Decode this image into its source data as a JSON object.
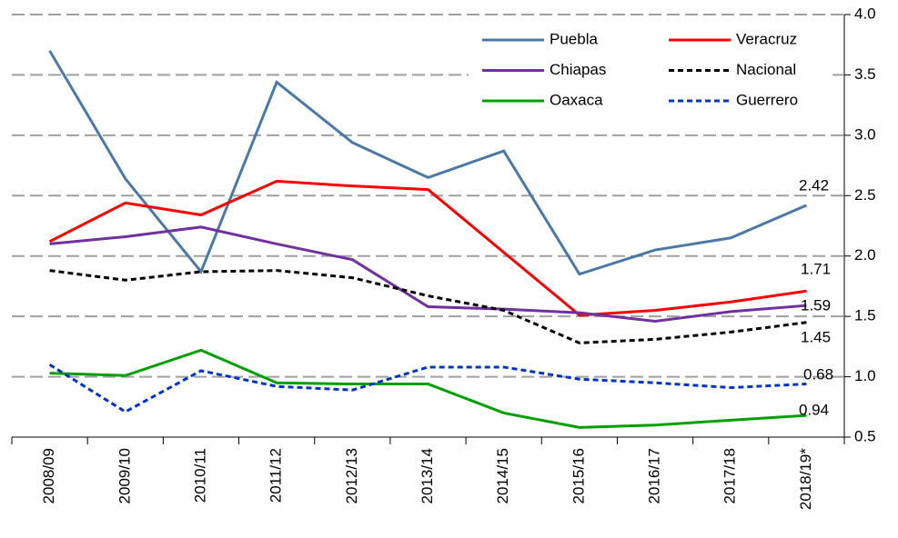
{
  "chart_data": {
    "type": "line",
    "categories": [
      "2008/09",
      "2009/10",
      "2010/11",
      "2011/12",
      "2012/13",
      "2013/14",
      "2014/15",
      "2015/16",
      "2016/17",
      "2017/18",
      "2018/19*"
    ],
    "series": [
      {
        "name": "Puebla",
        "color": "#4a78a8",
        "dashed": false,
        "values": [
          3.7,
          2.64,
          1.87,
          3.44,
          2.94,
          2.65,
          2.87,
          1.85,
          2.05,
          2.15,
          2.42
        ]
      },
      {
        "name": "Veracruz",
        "color": "#ff0000",
        "dashed": false,
        "values": [
          2.12,
          2.44,
          2.34,
          2.62,
          2.58,
          2.55,
          2.03,
          1.51,
          1.55,
          1.62,
          1.71
        ]
      },
      {
        "name": "Chiapas",
        "color": "#7030a0",
        "dashed": false,
        "values": [
          2.1,
          2.16,
          2.24,
          2.1,
          1.97,
          1.58,
          1.56,
          1.53,
          1.46,
          1.54,
          1.59
        ]
      },
      {
        "name": "Nacional",
        "color": "#000000",
        "dashed": true,
        "values": [
          1.88,
          1.8,
          1.87,
          1.88,
          1.82,
          1.67,
          1.55,
          1.28,
          1.31,
          1.37,
          1.45
        ]
      },
      {
        "name": "Oaxaca",
        "color": "#00a000",
        "dashed": false,
        "values": [
          1.03,
          1.01,
          1.22,
          0.95,
          0.94,
          0.94,
          0.7,
          0.58,
          0.6,
          0.64,
          0.68
        ]
      },
      {
        "name": "Guerrero",
        "color": "#0033cc",
        "dashed": true,
        "values": [
          1.1,
          0.71,
          1.05,
          0.92,
          0.89,
          1.08,
          1.08,
          0.98,
          0.95,
          0.91,
          0.94
        ]
      }
    ],
    "ylim": [
      0.5,
      4.0
    ],
    "yticks": [
      0.5,
      {
        "value": 1,
        "label": "1.0"
      },
      1.5,
      {
        "value": 2,
        "label": "2.0"
      },
      2.5,
      {
        "value": 3,
        "label": "3.0"
      },
      3.5,
      {
        "value": 4,
        "label": "4.0"
      }
    ],
    "grid": true,
    "y_axis_side": "right",
    "legend_position": "upper right"
  }
}
